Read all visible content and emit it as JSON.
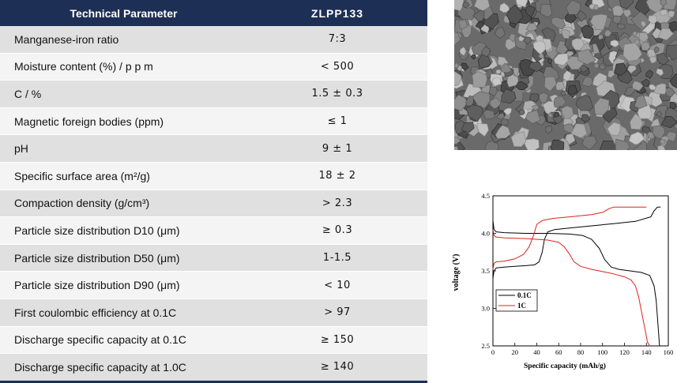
{
  "table": {
    "header": {
      "param": "Technical Parameter",
      "model": "ZLPP133"
    },
    "rows": [
      {
        "param": "Manganese-iron ratio",
        "value": "7:3"
      },
      {
        "param": "Moisture content (%) / p p m",
        "value": "< 500"
      },
      {
        "param": "C / %",
        "value": "1.5 ± 0.3"
      },
      {
        "param": "Magnetic foreign bodies (ppm)",
        "value": "≤ 1"
      },
      {
        "param": "pH",
        "value": "9 ± 1"
      },
      {
        "param": "Specific surface area (m²/g)",
        "value": "18 ± 2"
      },
      {
        "param": "Compaction density (g/cm³)",
        "value": "> 2.3"
      },
      {
        "param": "Particle size distribution D10 (μm)",
        "value": "≥ 0.3"
      },
      {
        "param": "Particle size distribution D50 (μm)",
        "value": "1-1.5"
      },
      {
        "param": "Particle size distribution D90 (μm)",
        "value": "< 10"
      },
      {
        "param": "First coulombic efficiency at 0.1C",
        "value": "> 97"
      },
      {
        "param": "Discharge specific capacity at 0.1C",
        "value": "≥ 150"
      },
      {
        "param": "Discharge specific capacity at 1.0C",
        "value": "≥ 140"
      }
    ]
  },
  "chart_data": {
    "type": "line",
    "xlabel": "Specific capacity (mAh/g)",
    "ylabel": "voltage (V)",
    "xlim": [
      0,
      160
    ],
    "ylim": [
      2.5,
      4.5
    ],
    "xticks": [
      "0",
      "20",
      "40",
      "60",
      "80",
      "100",
      "120",
      "140",
      "160"
    ],
    "yticks": [
      "2.5",
      "3.0",
      "3.5",
      "4.0",
      "4.5"
    ],
    "legend_position": "center-left",
    "series": [
      {
        "name": "0.1C",
        "color": "#000000",
        "charge": [
          [
            0,
            3.4
          ],
          [
            1,
            3.5
          ],
          [
            3,
            3.54
          ],
          [
            10,
            3.55
          ],
          [
            20,
            3.56
          ],
          [
            30,
            3.57
          ],
          [
            38,
            3.58
          ],
          [
            42,
            3.62
          ],
          [
            45,
            3.75
          ],
          [
            47,
            3.92
          ],
          [
            50,
            4.02
          ],
          [
            56,
            4.05
          ],
          [
            70,
            4.07
          ],
          [
            90,
            4.1
          ],
          [
            110,
            4.13
          ],
          [
            130,
            4.16
          ],
          [
            144,
            4.22
          ],
          [
            147,
            4.3
          ],
          [
            150,
            4.35
          ],
          [
            153,
            4.35
          ]
        ],
        "discharge": [
          [
            0,
            4.17
          ],
          [
            1,
            4.05
          ],
          [
            3,
            4.02
          ],
          [
            10,
            4.01
          ],
          [
            30,
            4.0
          ],
          [
            50,
            4.0
          ],
          [
            70,
            3.99
          ],
          [
            82,
            3.97
          ],
          [
            90,
            3.92
          ],
          [
            97,
            3.8
          ],
          [
            102,
            3.65
          ],
          [
            108,
            3.55
          ],
          [
            115,
            3.52
          ],
          [
            125,
            3.5
          ],
          [
            135,
            3.48
          ],
          [
            143,
            3.44
          ],
          [
            147,
            3.3
          ],
          [
            149,
            3.1
          ],
          [
            150,
            2.9
          ],
          [
            151,
            2.7
          ],
          [
            152,
            2.5
          ]
        ]
      },
      {
        "name": "1C",
        "color": "#e02020",
        "charge": [
          [
            0,
            3.52
          ],
          [
            1,
            3.6
          ],
          [
            3,
            3.62
          ],
          [
            10,
            3.63
          ],
          [
            20,
            3.66
          ],
          [
            28,
            3.72
          ],
          [
            33,
            3.82
          ],
          [
            37,
            3.97
          ],
          [
            40,
            4.12
          ],
          [
            45,
            4.17
          ],
          [
            55,
            4.2
          ],
          [
            70,
            4.22
          ],
          [
            90,
            4.25
          ],
          [
            100,
            4.28
          ],
          [
            106,
            4.33
          ],
          [
            110,
            4.35
          ],
          [
            125,
            4.35
          ],
          [
            140,
            4.35
          ]
        ],
        "discharge": [
          [
            0,
            4.05
          ],
          [
            1,
            3.97
          ],
          [
            3,
            3.95
          ],
          [
            10,
            3.94
          ],
          [
            30,
            3.93
          ],
          [
            50,
            3.91
          ],
          [
            60,
            3.88
          ],
          [
            65,
            3.82
          ],
          [
            70,
            3.72
          ],
          [
            74,
            3.62
          ],
          [
            80,
            3.56
          ],
          [
            90,
            3.52
          ],
          [
            100,
            3.49
          ],
          [
            110,
            3.46
          ],
          [
            120,
            3.42
          ],
          [
            126,
            3.38
          ],
          [
            130,
            3.3
          ],
          [
            133,
            3.15
          ],
          [
            135,
            3.0
          ],
          [
            137,
            2.85
          ],
          [
            139,
            2.7
          ],
          [
            141,
            2.55
          ],
          [
            143,
            2.5
          ]
        ]
      }
    ]
  }
}
